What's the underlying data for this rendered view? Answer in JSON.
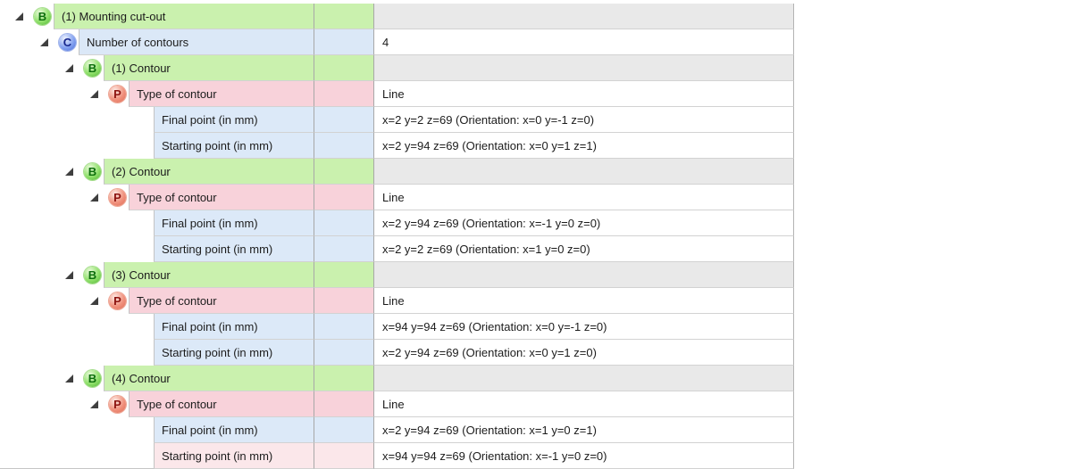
{
  "colors": {
    "group_row_bg": "#caf1ae",
    "count_row_bg": "#dbe8f7",
    "param_row_bg": "#f8d2da",
    "selected_row_bg": "#fbe7ea",
    "group_value_bg": "#e9e9e9",
    "badge_b": "#4db232",
    "badge_c": "#4a6cd8",
    "badge_p": "#dd6b54"
  },
  "tree": {
    "rows": [
      {
        "kind": "group",
        "level": 0,
        "icon": "B",
        "label": "(1) Mounting cut-out",
        "value": ""
      },
      {
        "kind": "count",
        "level": 1,
        "icon": "C",
        "label": "Number of contours",
        "value": "4"
      },
      {
        "kind": "group",
        "level": 2,
        "icon": "B",
        "label": "(1) Contour",
        "value": ""
      },
      {
        "kind": "param",
        "level": 3,
        "icon": "P",
        "label": "Type of contour",
        "value": "Line"
      },
      {
        "kind": "point",
        "level": 4,
        "icon": "",
        "label": "Final point (in mm)",
        "value": "x=2 y=2 z=69 (Orientation: x=0 y=-1 z=0)"
      },
      {
        "kind": "point",
        "level": 4,
        "icon": "",
        "label": "Starting point (in mm)",
        "value": "x=2 y=94 z=69 (Orientation: x=0 y=1 z=1)"
      },
      {
        "kind": "group",
        "level": 2,
        "icon": "B",
        "label": "(2) Contour",
        "value": ""
      },
      {
        "kind": "param",
        "level": 3,
        "icon": "P",
        "label": "Type of contour",
        "value": "Line"
      },
      {
        "kind": "point",
        "level": 4,
        "icon": "",
        "label": "Final point (in mm)",
        "value": "x=2 y=94 z=69 (Orientation: x=-1 y=0 z=0)"
      },
      {
        "kind": "point",
        "level": 4,
        "icon": "",
        "label": "Starting point (in mm)",
        "value": "x=2 y=2 z=69 (Orientation: x=1 y=0 z=0)"
      },
      {
        "kind": "group",
        "level": 2,
        "icon": "B",
        "label": "(3) Contour",
        "value": ""
      },
      {
        "kind": "param",
        "level": 3,
        "icon": "P",
        "label": "Type of contour",
        "value": "Line"
      },
      {
        "kind": "point",
        "level": 4,
        "icon": "",
        "label": "Final point (in mm)",
        "value": "x=94 y=94 z=69 (Orientation: x=0 y=-1 z=0)"
      },
      {
        "kind": "point",
        "level": 4,
        "icon": "",
        "label": "Starting point (in mm)",
        "value": "x=2 y=94 z=69 (Orientation: x=0 y=1 z=0)"
      },
      {
        "kind": "group",
        "level": 2,
        "icon": "B",
        "label": "(4) Contour",
        "value": ""
      },
      {
        "kind": "param",
        "level": 3,
        "icon": "P",
        "label": "Type of contour",
        "value": "Line"
      },
      {
        "kind": "point",
        "level": 4,
        "icon": "",
        "label": "Final point (in mm)",
        "value": "x=2 y=94 z=69 (Orientation: x=1 y=0 z=1)"
      },
      {
        "kind": "point-selected",
        "level": 4,
        "icon": "",
        "label": "Starting point (in mm)",
        "value": "x=94 y=94 z=69 (Orientation: x=-1 y=0 z=0)"
      }
    ]
  }
}
